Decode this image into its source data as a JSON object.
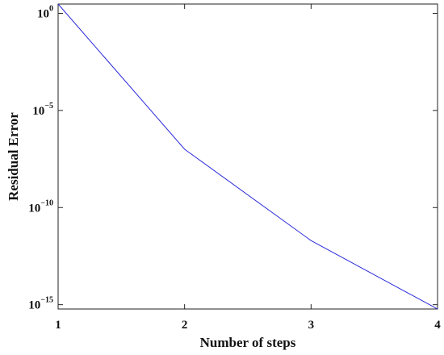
{
  "chart_data": {
    "type": "line",
    "title": "",
    "xlabel": "Number of steps",
    "ylabel": "Residual Error",
    "x": [
      1,
      2,
      3,
      4
    ],
    "series": [
      {
        "values": [
          3.0,
          1e-07,
          2e-12,
          6e-16
        ],
        "color": "#2b2bdc"
      }
    ],
    "xlim": [
      1,
      4
    ],
    "ylim": [
      6e-16,
      3.0
    ],
    "yscale": "log",
    "x_ticks": [
      {
        "value": 1,
        "label": "1"
      },
      {
        "value": 2,
        "label": "2"
      },
      {
        "value": 3,
        "label": "3"
      },
      {
        "value": 4,
        "label": "4"
      }
    ],
    "y_ticks": [
      {
        "value": 1.0,
        "base": "10",
        "exp": "0"
      },
      {
        "value": 1e-05,
        "base": "10",
        "exp": "−5"
      },
      {
        "value": 1e-10,
        "base": "10",
        "exp": "−10"
      },
      {
        "value": 1e-15,
        "base": "10",
        "exp": "−15"
      }
    ],
    "grid": false,
    "legend": "none"
  }
}
